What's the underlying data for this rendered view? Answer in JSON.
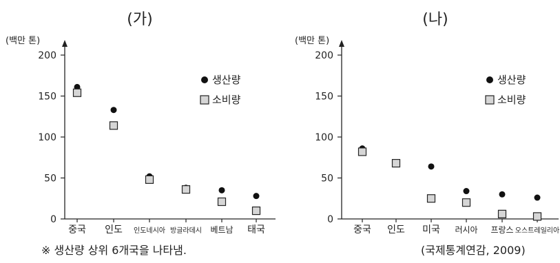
{
  "chart_data": [
    {
      "type": "scatter",
      "title": "(가)",
      "unit_label": "(백만 톤)",
      "categories": [
        "중국",
        "인도",
        "인도네시아",
        "방글라데시",
        "베트남",
        "태국"
      ],
      "series": [
        {
          "name": "생산량",
          "values": [
            161,
            133,
            52,
            38,
            35,
            28
          ]
        },
        {
          "name": "소비량",
          "values": [
            154,
            114,
            48,
            36,
            21,
            10
          ]
        }
      ],
      "ylim": [
        0,
        200
      ],
      "yticks": [
        0,
        50,
        100,
        150,
        200
      ],
      "legend_position": "top-right",
      "grid": false
    },
    {
      "type": "scatter",
      "title": "(나)",
      "unit_label": "(백만 톤)",
      "categories": [
        "중국",
        "인도",
        "미국",
        "러시아",
        "프랑스",
        "오스트레일리아"
      ],
      "series": [
        {
          "name": "생산량",
          "values": [
            86,
            67,
            64,
            34,
            30,
            26
          ]
        },
        {
          "name": "소비량",
          "values": [
            82,
            68,
            25,
            20,
            6,
            3
          ]
        }
      ],
      "ylim": [
        0,
        200
      ],
      "yticks": [
        0,
        50,
        100,
        150,
        200
      ],
      "legend_position": "top-right",
      "grid": false
    }
  ],
  "footnote_left": "※ 생산량 상위 6개국을 나타냄.",
  "footnote_right": "(국제통계연감, 2009)"
}
